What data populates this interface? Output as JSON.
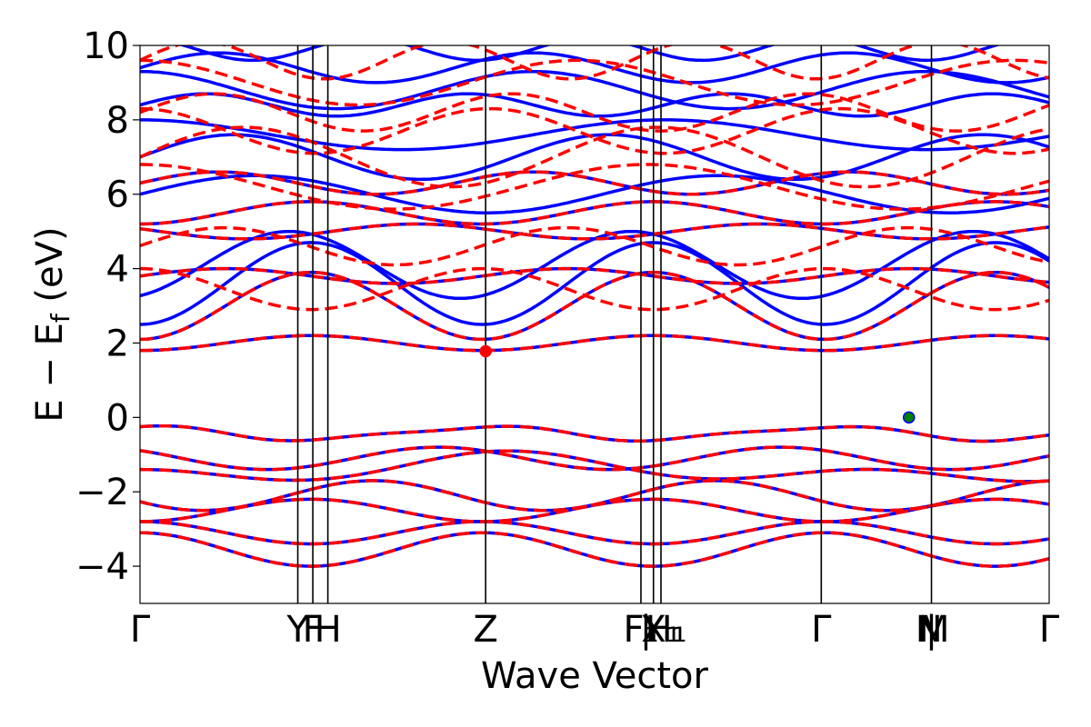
{
  "chart_data": {
    "type": "line",
    "title": "",
    "xlabel": "Wave Vector",
    "ylabel": "E − E_f (eV)",
    "ylabel_main": "E − E",
    "ylabel_sub": "f",
    "ylabel_unit": " (eV)",
    "ylim": [
      -5,
      10
    ],
    "xlim": [
      0,
      4.2
    ],
    "yticks": [
      "−4",
      "−2",
      "0",
      "2",
      "4",
      "6",
      "8",
      "10"
    ],
    "ytick_values": [
      -4,
      -2,
      0,
      2,
      4,
      6,
      8,
      10
    ],
    "kpoints": [
      {
        "label": "Γ",
        "x": 0.0
      },
      {
        "label": "Y",
        "x": 0.63
      },
      {
        "label": "F",
        "x": 0.69
      },
      {
        "label": "H",
        "x": 0.75
      },
      {
        "label": "Z",
        "x": 1.38
      },
      {
        "label": "F₁",
        "x": 2.0
      },
      {
        "label": "|",
        "x": 2.02
      },
      {
        "label": "Y",
        "x": 2.05
      },
      {
        "label": "X₁",
        "x": 2.08
      },
      {
        "label": "H₁",
        "x": 2.1
      },
      {
        "label": "Γ",
        "x": 2.72
      },
      {
        "label": "N",
        "x": 3.15
      },
      {
        "label": "|",
        "x": 3.16
      },
      {
        "label": "M",
        "x": 3.17
      },
      {
        "label": "Γ",
        "x": 3.63
      }
    ],
    "vertical_lines_x": [
      0.63,
      0.69,
      0.75,
      1.38,
      2.0,
      2.05,
      2.08,
      2.72,
      3.16
    ],
    "series": [
      {
        "color": "#0000ff",
        "dash": "solid"
      },
      {
        "color": "#ff0000",
        "dash": "dashed"
      }
    ],
    "markers": [
      {
        "x": 1.38,
        "y": 1.78,
        "color": "#ff0000"
      },
      {
        "x": 3.07,
        "y": 0.0,
        "color": "#008000"
      }
    ],
    "bands_valence_max": 0.0,
    "bands_conduction_min": 1.78
  }
}
